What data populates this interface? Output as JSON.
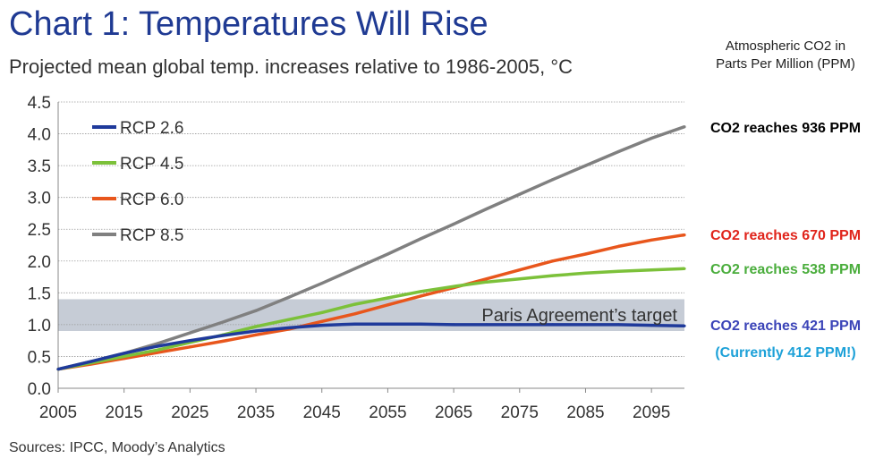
{
  "header": {
    "title": "Chart 1: Temperatures Will Rise",
    "subtitle": "Projected mean global temp. increases relative to 1986-2005, °C",
    "co2_header_line1": "Atmospheric CO2 in",
    "co2_header_line2": "Parts Per Million (PPM)"
  },
  "footer": {
    "source": "Sources: IPCC, Moody’s Analytics"
  },
  "colors": {
    "rcp26": "#1f3a9b",
    "rcp45": "#7cc13a",
    "rcp60": "#e8561c",
    "rcp85": "#808080",
    "band": "#c6ccd6",
    "ann_black": "#000000",
    "ann_red": "#e0241b",
    "ann_green": "#4aad3c",
    "ann_blue": "#3b44b8",
    "ann_cyan": "#1da1d8"
  },
  "chart_data": {
    "type": "line",
    "title": "Chart 1: Temperatures Will Rise",
    "subtitle": "Projected mean global temp. increases relative to 1986-2005, °C",
    "xlim": [
      2005,
      2100
    ],
    "ylim": [
      0,
      4.5
    ],
    "x_ticks": [
      "2005",
      "2015",
      "2025",
      "2035",
      "2045",
      "2055",
      "2065",
      "2075",
      "2085",
      "2095"
    ],
    "y_ticks": [
      "0.0",
      "0.5",
      "1.0",
      "1.5",
      "2.0",
      "2.5",
      "3.0",
      "3.5",
      "4.0",
      "4.5"
    ],
    "grid": "horizontal",
    "legend_placement": "top-left",
    "x": [
      2005,
      2010,
      2015,
      2020,
      2025,
      2030,
      2035,
      2040,
      2045,
      2050,
      2055,
      2060,
      2065,
      2070,
      2075,
      2080,
      2085,
      2090,
      2095,
      2100
    ],
    "series": [
      {
        "name": "RCP 2.6",
        "values": [
          0.3,
          0.42,
          0.55,
          0.66,
          0.75,
          0.83,
          0.9,
          0.95,
          0.99,
          1.01,
          1.01,
          1.01,
          1.0,
          1.0,
          1.0,
          1.0,
          1.0,
          1.0,
          0.99,
          0.98
        ]
      },
      {
        "name": "RCP 4.5",
        "values": [
          0.3,
          0.4,
          0.5,
          0.6,
          0.72,
          0.84,
          0.97,
          1.08,
          1.19,
          1.32,
          1.42,
          1.52,
          1.6,
          1.67,
          1.72,
          1.77,
          1.81,
          1.84,
          1.86,
          1.88
        ]
      },
      {
        "name": "RCP 6.0",
        "values": [
          0.3,
          0.38,
          0.47,
          0.56,
          0.65,
          0.74,
          0.84,
          0.93,
          1.05,
          1.17,
          1.31,
          1.45,
          1.58,
          1.72,
          1.86,
          2.0,
          2.11,
          2.23,
          2.33,
          2.41
        ]
      },
      {
        "name": "RCP 8.5",
        "values": [
          0.3,
          0.42,
          0.55,
          0.7,
          0.87,
          1.04,
          1.22,
          1.43,
          1.65,
          1.88,
          2.11,
          2.35,
          2.58,
          2.82,
          3.05,
          3.28,
          3.5,
          3.72,
          3.93,
          4.11
        ]
      }
    ],
    "annotations": {
      "band_label": "Paris Agreement’s target",
      "band_range": [
        0.9,
        1.4
      ],
      "co2_85": "CO2 reaches 936 PPM",
      "co2_60": "CO2 reaches 670 PPM",
      "co2_45": "CO2 reaches 538 PPM",
      "co2_26": "CO2 reaches 421 PPM",
      "currently": "(Currently 412 PPM!)"
    }
  }
}
